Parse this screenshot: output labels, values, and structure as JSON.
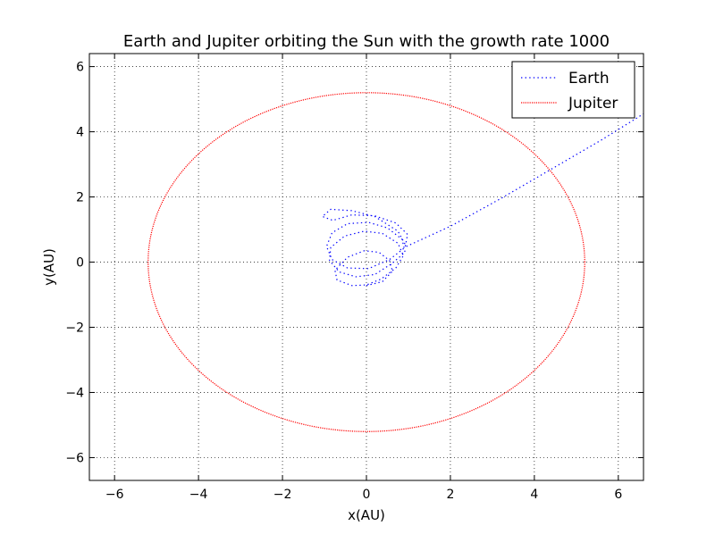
{
  "chart_data": {
    "type": "line",
    "title": "Earth and Jupiter orbiting the Sun with the growth rate 1000",
    "xlabel": "x(AU)",
    "ylabel": "y(AU)",
    "xlim": [
      -6.6,
      6.6
    ],
    "ylim": [
      -6.7,
      6.4
    ],
    "xticks": [
      -6,
      -4,
      -2,
      0,
      2,
      4,
      6
    ],
    "yticks": [
      -6,
      -4,
      -2,
      0,
      2,
      4,
      6
    ],
    "xtick_labels": [
      "−6",
      "−4",
      "−2",
      "0",
      "2",
      "4",
      "6"
    ],
    "ytick_labels": [
      "−6",
      "−4",
      "−2",
      "0",
      "2",
      "4",
      "6"
    ],
    "grid": true,
    "legend": {
      "placement": "top-right"
    },
    "series": [
      {
        "name": "Earth",
        "color": "#0000ff",
        "style": "dotted",
        "points": [
          [
            0,
            -0.72
          ],
          [
            0.38,
            -0.6
          ],
          [
            0.62,
            -0.28
          ],
          [
            0.55,
            0.05
          ],
          [
            0.3,
            0.3
          ],
          [
            -0.05,
            0.35
          ],
          [
            -0.45,
            0.15
          ],
          [
            -0.75,
            -0.25
          ],
          [
            -0.7,
            -0.55
          ],
          [
            -0.35,
            -0.72
          ],
          [
            0,
            -0.7
          ],
          [
            0.35,
            -0.52
          ],
          [
            0.7,
            -0.18
          ],
          [
            0.88,
            0.2
          ],
          [
            0.75,
            0.58
          ],
          [
            0.38,
            0.88
          ],
          [
            -0.05,
            0.95
          ],
          [
            -0.52,
            0.8
          ],
          [
            -0.85,
            0.45
          ],
          [
            -0.88,
            0.05
          ],
          [
            -0.65,
            -0.3
          ],
          [
            -0.25,
            -0.45
          ],
          [
            0.2,
            -0.38
          ],
          [
            0.6,
            -0.05
          ],
          [
            0.92,
            0.3
          ],
          [
            0.85,
            0.7
          ],
          [
            0.5,
            1.05
          ],
          [
            0.05,
            1.22
          ],
          [
            -0.45,
            1.18
          ],
          [
            -0.82,
            0.9
          ],
          [
            -0.95,
            0.48
          ],
          [
            -0.82,
            0.08
          ],
          [
            -0.45,
            -0.18
          ],
          [
            0.05,
            -0.2
          ],
          [
            0.55,
            0.08
          ],
          [
            0.92,
            0.45
          ],
          [
            0.98,
            0.85
          ],
          [
            0.7,
            1.2
          ],
          [
            0.2,
            1.42
          ],
          [
            -0.35,
            1.45
          ],
          [
            -0.8,
            1.28
          ],
          [
            -1.05,
            1.4
          ],
          [
            -0.85,
            1.62
          ],
          [
            -0.35,
            1.58
          ],
          [
            0.2,
            1.4
          ],
          [
            0.75,
            0.95
          ],
          [
            0.95,
            0.48
          ],
          [
            2.0,
            1.1
          ],
          [
            3.2,
            1.95
          ],
          [
            4.4,
            2.85
          ],
          [
            5.6,
            3.75
          ],
          [
            6.6,
            4.55
          ]
        ]
      },
      {
        "name": "Jupiter",
        "color": "#ff0000",
        "style": "dotted",
        "orbit": {
          "shape": "circle",
          "center": [
            0,
            0
          ],
          "radius": 5.2
        }
      }
    ]
  }
}
